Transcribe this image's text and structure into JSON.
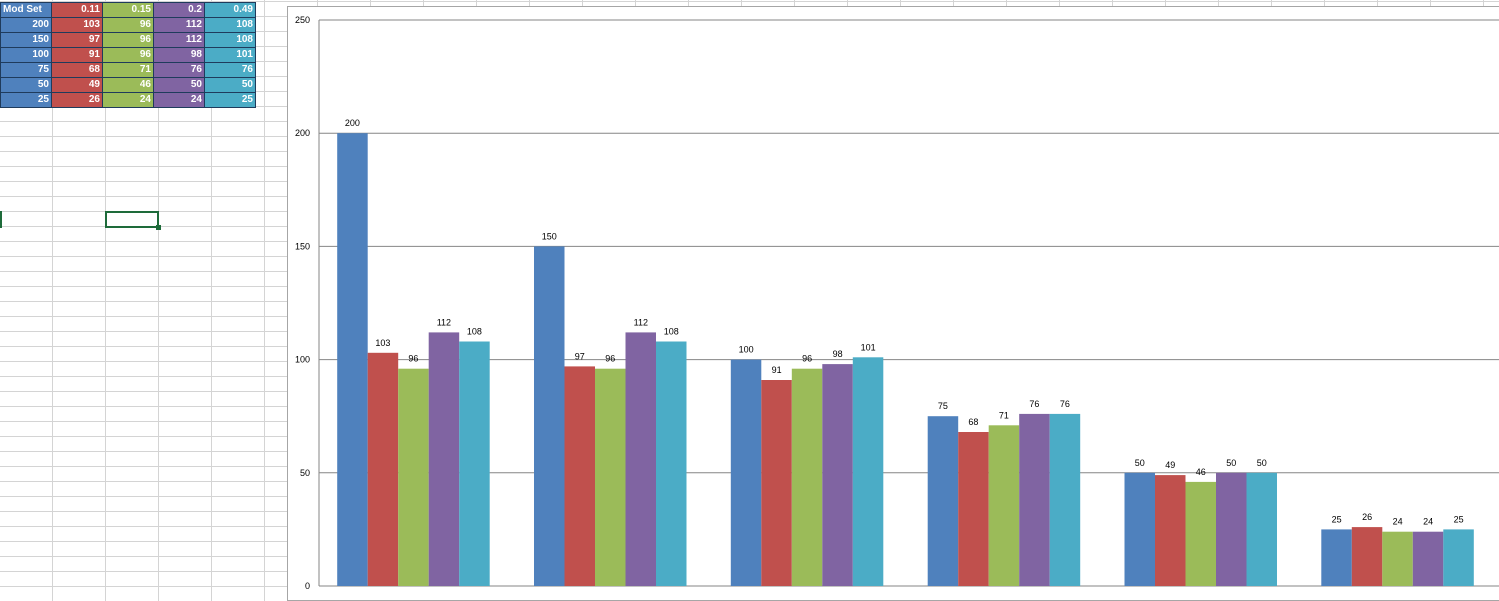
{
  "table": {
    "header": [
      "Mod Set",
      "0.11",
      "0.15",
      "0.2",
      "0.49"
    ],
    "rows": [
      [
        "200",
        "103",
        "96",
        "112",
        "108"
      ],
      [
        "150",
        "97",
        "96",
        "112",
        "108"
      ],
      [
        "100",
        "91",
        "96",
        "98",
        "101"
      ],
      [
        "75",
        "68",
        "71",
        "76",
        "76"
      ],
      [
        "50",
        "49",
        "46",
        "50",
        "50"
      ],
      [
        "25",
        "26",
        "24",
        "24",
        "25"
      ]
    ],
    "column_colors": [
      "#4f81bd",
      "#c0504d",
      "#9bbb59",
      "#8064a2",
      "#4bacc6"
    ]
  },
  "chart_data": {
    "type": "bar",
    "categories": [
      "",
      "",
      "",
      "",
      "",
      ""
    ],
    "series": [
      {
        "name": "",
        "color": "#4f81bd",
        "values": [
          200,
          150,
          100,
          75,
          50,
          25
        ]
      },
      {
        "name": "",
        "color": "#c0504d",
        "values": [
          103,
          97,
          91,
          68,
          49,
          26
        ]
      },
      {
        "name": "",
        "color": "#9bbb59",
        "values": [
          96,
          96,
          96,
          71,
          46,
          24
        ]
      },
      {
        "name": "",
        "color": "#8064a2",
        "values": [
          112,
          112,
          98,
          76,
          50,
          24
        ]
      },
      {
        "name": "",
        "color": "#4bacc6",
        "values": [
          108,
          108,
          101,
          76,
          50,
          25
        ]
      }
    ],
    "yticks": [
      0,
      50,
      100,
      150,
      200,
      250
    ],
    "ylim": [
      0,
      250
    ],
    "data_labels": true,
    "grid": true,
    "legend": "none",
    "title": "",
    "xlabel": "",
    "ylabel": ""
  }
}
